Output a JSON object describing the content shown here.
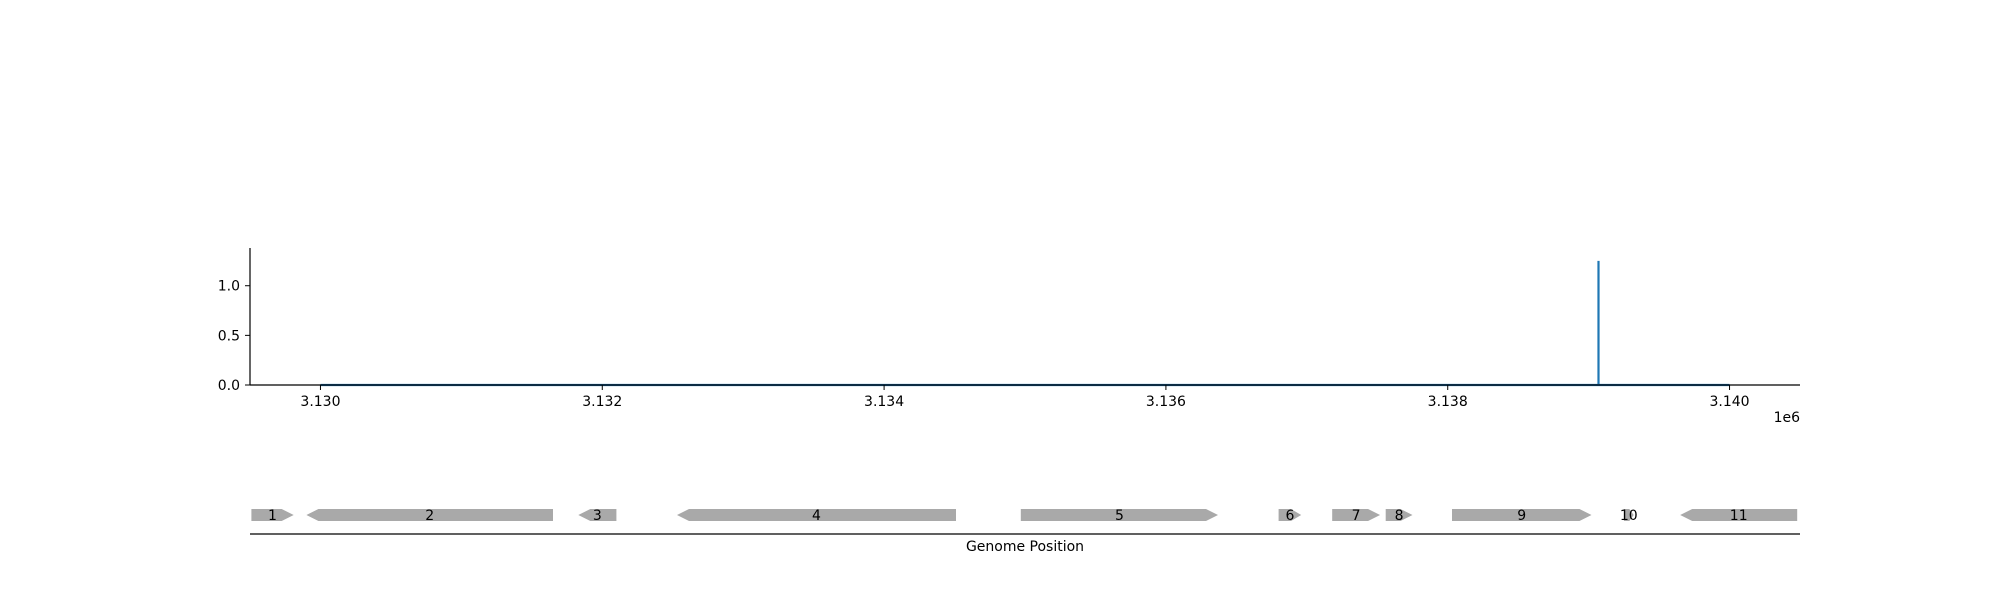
{
  "chart_data": [
    {
      "type": "line",
      "title": "",
      "xlabel": "",
      "ylabel": "",
      "x_offset_label": "1e6",
      "x_scale": 1000000,
      "xlim": [
        3129500,
        3140500
      ],
      "ylim": [
        0,
        1.38
      ],
      "x_ticks": [
        3130000,
        3132000,
        3134000,
        3136000,
        3138000,
        3140000
      ],
      "x_tick_labels": [
        "3.130",
        "3.132",
        "3.134",
        "3.136",
        "3.138",
        "3.140"
      ],
      "y_ticks": [
        0.0,
        0.5,
        1.0
      ],
      "y_tick_labels": [
        "0.0",
        "0.5",
        "1.0"
      ],
      "grid": false,
      "series": [
        {
          "color": "#1f77b4",
          "x": [
            3130000,
            3139070,
            3139070,
            3139070,
            3139070,
            3140000
          ],
          "y": [
            0,
            0,
            1.25,
            1.25,
            0,
            0
          ]
        }
      ]
    },
    {
      "type": "gene-track",
      "xlabel": "Genome Position",
      "xlim": [
        3129500,
        3140500
      ],
      "feature_color": "#a9a9a9",
      "features": [
        {
          "label": "1",
          "start": 3129510,
          "end": 3129810,
          "strand": 1
        },
        {
          "label": "2",
          "start": 3129900,
          "end": 3131650,
          "strand": -1
        },
        {
          "label": "3",
          "start": 3131830,
          "end": 3132100,
          "strand": -1
        },
        {
          "label": "4",
          "start": 3132530,
          "end": 3134510,
          "strand": -1
        },
        {
          "label": "5",
          "start": 3134970,
          "end": 3136370,
          "strand": 1
        },
        {
          "label": "6",
          "start": 3136800,
          "end": 3136960,
          "strand": 1
        },
        {
          "label": "7",
          "start": 3137180,
          "end": 3137520,
          "strand": 1
        },
        {
          "label": "8",
          "start": 3137560,
          "end": 3137750,
          "strand": 1
        },
        {
          "label": "9",
          "start": 3138030,
          "end": 3139020,
          "strand": 1
        },
        {
          "label": "10",
          "start": 3139250,
          "end": 3139320,
          "strand": 1
        },
        {
          "label": "11",
          "start": 3139650,
          "end": 3140480,
          "strand": -1
        }
      ]
    }
  ]
}
